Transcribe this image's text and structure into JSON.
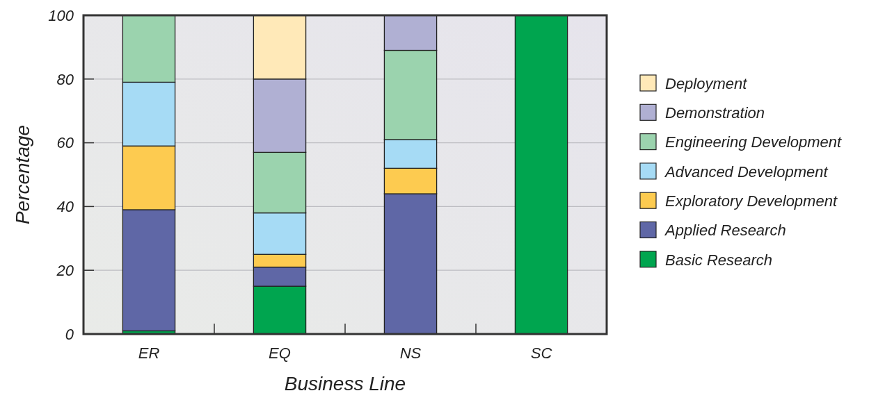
{
  "chart_data": {
    "type": "bar",
    "stacked": true,
    "xlabel": "Business Line",
    "ylabel": "Percentage",
    "categories": [
      "ER",
      "EQ",
      "NS",
      "SC"
    ],
    "ylim": [
      0,
      100
    ],
    "yticks": [
      0,
      20,
      40,
      60,
      80,
      100
    ],
    "grid": "y",
    "legend": "right",
    "series": [
      {
        "name": "Basic Research",
        "color": "#00a54f",
        "values": [
          1,
          15,
          0,
          100
        ]
      },
      {
        "name": "Applied Research",
        "color": "#5f67a6",
        "values": [
          38,
          6,
          44,
          0
        ]
      },
      {
        "name": "Exploratory Development",
        "color": "#fdcb50",
        "values": [
          20,
          4,
          8,
          0
        ]
      },
      {
        "name": "Advanced Development",
        "color": "#a6dbf5",
        "values": [
          20,
          13,
          9,
          0
        ]
      },
      {
        "name": "Engineering Development",
        "color": "#9bd3ae",
        "values": [
          21,
          19,
          28,
          0
        ]
      },
      {
        "name": "Demonstration",
        "color": "#b0b0d3",
        "values": [
          0,
          23,
          11,
          0
        ]
      },
      {
        "name": "Deployment",
        "color": "#ffe9b8",
        "values": [
          0,
          20,
          0,
          0
        ]
      }
    ]
  }
}
